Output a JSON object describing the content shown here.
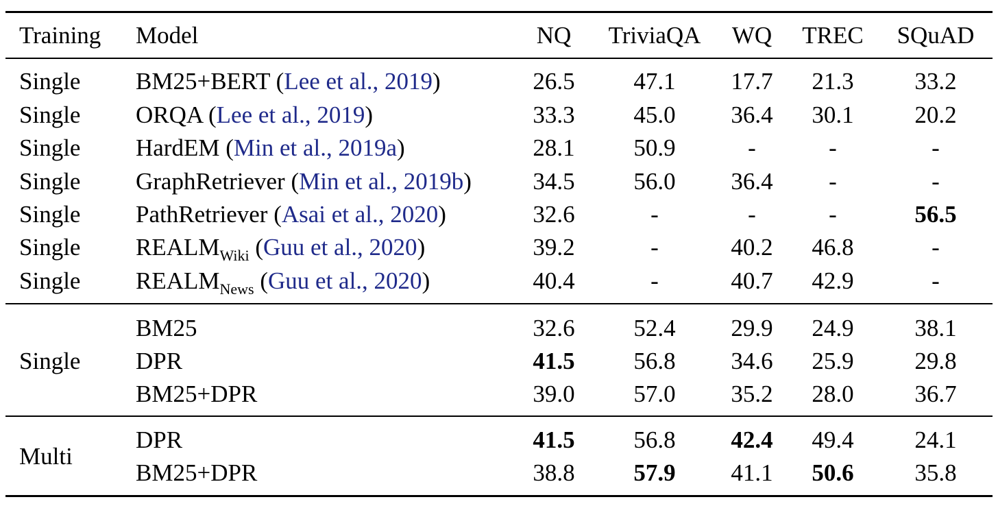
{
  "header": {
    "training": "Training",
    "model": "Model",
    "columns": [
      "NQ",
      "TriviaQA",
      "WQ",
      "TREC",
      "SQuAD"
    ]
  },
  "baselines": [
    {
      "training": "Single",
      "model": "BM25+BERT",
      "sub": "",
      "cite": "Lee et al., 2019",
      "values": [
        "26.5",
        "47.1",
        "17.7",
        "21.3",
        "33.2"
      ],
      "bold": [
        false,
        false,
        false,
        false,
        false
      ]
    },
    {
      "training": "Single",
      "model": "ORQA",
      "sub": "",
      "cite": "Lee et al., 2019",
      "values": [
        "33.3",
        "45.0",
        "36.4",
        "30.1",
        "20.2"
      ],
      "bold": [
        false,
        false,
        false,
        false,
        false
      ]
    },
    {
      "training": "Single",
      "model": "HardEM",
      "sub": "",
      "cite": "Min et al., 2019a",
      "values": [
        "28.1",
        "50.9",
        "-",
        "-",
        "-"
      ],
      "bold": [
        false,
        false,
        false,
        false,
        false
      ]
    },
    {
      "training": "Single",
      "model": "GraphRetriever",
      "sub": "",
      "cite": "Min et al., 2019b",
      "values": [
        "34.5",
        "56.0",
        "36.4",
        "-",
        "-"
      ],
      "bold": [
        false,
        false,
        false,
        false,
        false
      ]
    },
    {
      "training": "Single",
      "model": "PathRetriever",
      "sub": "",
      "cite": "Asai et al., 2020",
      "values": [
        "32.6",
        "-",
        "-",
        "-",
        "56.5"
      ],
      "bold": [
        false,
        false,
        false,
        false,
        true
      ]
    },
    {
      "training": "Single",
      "model": "REALM",
      "sub": "Wiki",
      "cite": "Guu et al., 2020",
      "values": [
        "39.2",
        "-",
        "40.2",
        "46.8",
        "-"
      ],
      "bold": [
        false,
        false,
        false,
        false,
        false
      ]
    },
    {
      "training": "Single",
      "model": "REALM",
      "sub": "News",
      "cite": "Guu et al., 2020",
      "values": [
        "40.4",
        "-",
        "40.7",
        "42.9",
        "-"
      ],
      "bold": [
        false,
        false,
        false,
        false,
        false
      ]
    }
  ],
  "single_group": {
    "training": "Single",
    "rows": [
      {
        "model": "BM25",
        "values": [
          "32.6",
          "52.4",
          "29.9",
          "24.9",
          "38.1"
        ],
        "bold": [
          false,
          false,
          false,
          false,
          false
        ]
      },
      {
        "model": "DPR",
        "values": [
          "41.5",
          "56.8",
          "34.6",
          "25.9",
          "29.8"
        ],
        "bold": [
          true,
          false,
          false,
          false,
          false
        ]
      },
      {
        "model": "BM25+DPR",
        "values": [
          "39.0",
          "57.0",
          "35.2",
          "28.0",
          "36.7"
        ],
        "bold": [
          false,
          false,
          false,
          false,
          false
        ]
      }
    ]
  },
  "multi_group": {
    "training": "Multi",
    "rows": [
      {
        "model": "DPR",
        "values": [
          "41.5",
          "56.8",
          "42.4",
          "49.4",
          "24.1"
        ],
        "bold": [
          true,
          false,
          true,
          false,
          false
        ]
      },
      {
        "model": "BM25+DPR",
        "values": [
          "38.8",
          "57.9",
          "41.1",
          "50.6",
          "35.8"
        ],
        "bold": [
          false,
          true,
          false,
          true,
          false
        ]
      }
    ]
  }
}
